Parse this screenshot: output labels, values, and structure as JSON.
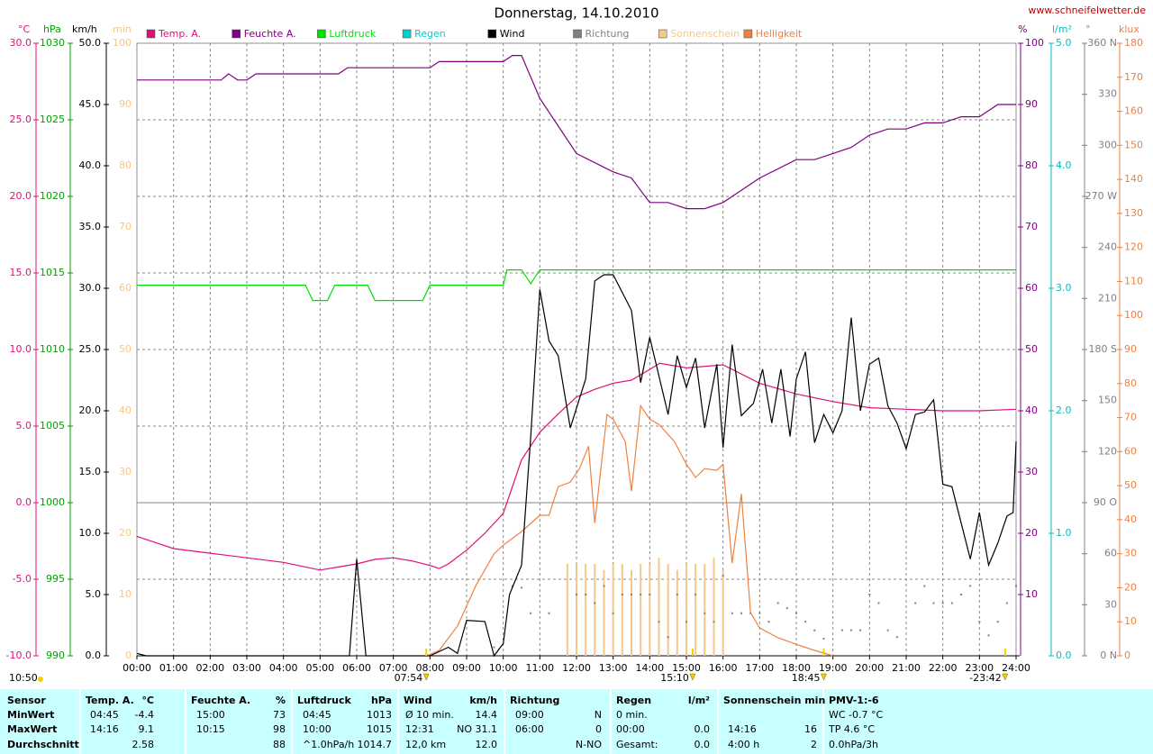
{
  "chart_data": {
    "type": "line",
    "title": "Donnerstag, 14.10.2010",
    "source": "www.schneifelwetter.de",
    "current_time": "10:50",
    "grid": true,
    "xlim": [
      0,
      24
    ],
    "xticks": [
      {
        "value": 0,
        "label": "00:00"
      },
      {
        "value": 1,
        "label": "01:00"
      },
      {
        "value": 2,
        "label": "02:00"
      },
      {
        "value": 3,
        "label": "03:00"
      },
      {
        "value": 4,
        "label": "04:00"
      },
      {
        "value": 5,
        "label": "05:00"
      },
      {
        "value": 6,
        "label": "06:00"
      },
      {
        "value": 7,
        "label": "07:00"
      },
      {
        "value": 8,
        "label": "08:00"
      },
      {
        "value": 9,
        "label": "09:00"
      },
      {
        "value": 10,
        "label": "10:00"
      },
      {
        "value": 11,
        "label": "11:00"
      },
      {
        "value": 12,
        "label": "12:00"
      },
      {
        "value": 13,
        "label": "13:00"
      },
      {
        "value": 14,
        "label": "14:00"
      },
      {
        "value": 15,
        "label": "15:00"
      },
      {
        "value": 16,
        "label": "16:00"
      },
      {
        "value": 17,
        "label": "17:00"
      },
      {
        "value": 18,
        "label": "18:00"
      },
      {
        "value": 19,
        "label": "19:00"
      },
      {
        "value": 20,
        "label": "20:00"
      },
      {
        "value": 21,
        "label": "21:00"
      },
      {
        "value": 22,
        "label": "22:00"
      },
      {
        "value": 23,
        "label": "23:00"
      },
      {
        "value": 24,
        "label": "24:00"
      }
    ],
    "axes": [
      {
        "unit": "°C",
        "color": "#e0107a",
        "lim": [
          -10,
          30
        ],
        "ticks": [
          {
            "value": -10,
            "label": "-10.0"
          },
          {
            "value": -5,
            "label": "-5.0"
          },
          {
            "value": 0,
            "label": "0.0"
          },
          {
            "value": 5,
            "label": "5.0"
          },
          {
            "value": 10,
            "label": "10.0"
          },
          {
            "value": 15,
            "label": "15.0"
          },
          {
            "value": 20,
            "label": "20.0"
          },
          {
            "value": 25,
            "label": "25.0"
          },
          {
            "value": 30,
            "label": "30.0"
          }
        ]
      },
      {
        "unit": "hPa",
        "color": "#00a000",
        "lim": [
          990,
          1030
        ],
        "ticks": [
          990,
          995,
          1000,
          1005,
          1010,
          1015,
          1020,
          1025,
          1030
        ]
      },
      {
        "unit": "km/h",
        "color": "#000000",
        "lim": [
          0,
          50
        ],
        "ticks": [
          {
            "value": 0,
            "label": "0.0"
          },
          {
            "value": 5,
            "label": "5.0"
          },
          {
            "value": 10,
            "label": "10.0"
          },
          {
            "value": 15,
            "label": "15.0"
          },
          {
            "value": 20,
            "label": "20.0"
          },
          {
            "value": 25,
            "label": "25.0"
          },
          {
            "value": 30,
            "label": "30.0"
          },
          {
            "value": 35,
            "label": "35.0"
          },
          {
            "value": 40,
            "label": "40.0"
          },
          {
            "value": 45,
            "label": "45.0"
          },
          {
            "value": 50,
            "label": "50.0"
          }
        ]
      },
      {
        "unit": "min",
        "color": "#f5c88a",
        "lim": [
          0,
          100
        ],
        "ticks": [
          0,
          10,
          20,
          30,
          40,
          50,
          60,
          70,
          80,
          90,
          100
        ]
      },
      {
        "unit": "%",
        "color": "#800080",
        "lim": [
          0,
          100
        ],
        "ticks": [
          10,
          20,
          30,
          40,
          50,
          60,
          70,
          80,
          90,
          100
        ]
      },
      {
        "unit": "l/m²",
        "color": "#00c0c0",
        "lim": [
          0,
          5
        ],
        "ticks": [
          {
            "value": 0,
            "label": "0.0"
          },
          {
            "value": 1,
            "label": "1.0"
          },
          {
            "value": 2,
            "label": "2.0"
          },
          {
            "value": 3,
            "label": "3.0"
          },
          {
            "value": 4,
            "label": "4.0"
          },
          {
            "value": 5,
            "label": "5.0"
          }
        ]
      },
      {
        "unit": "°",
        "color": "#808080",
        "lim": [
          0,
          360
        ],
        "ticks": [
          {
            "value": 0,
            "label": "0 N"
          },
          30,
          60,
          {
            "value": 90,
            "label": "90 O"
          },
          120,
          150,
          {
            "value": 180,
            "label": "180 S"
          },
          210,
          240,
          {
            "value": 270,
            "label": "270 W"
          },
          300,
          330,
          {
            "value": 360,
            "label": "360 N"
          }
        ]
      },
      {
        "unit": "klux",
        "color": "#f08040",
        "lim": [
          0,
          180
        ],
        "ticks": [
          0,
          10,
          20,
          30,
          40,
          50,
          60,
          70,
          80,
          90,
          100,
          110,
          120,
          130,
          140,
          150,
          160,
          170,
          180
        ]
      }
    ],
    "series": [
      {
        "name": "Temp. A.",
        "color": "#e0107a",
        "type": "line",
        "axis": 0,
        "x": [
          0,
          0.5,
          1,
          2,
          3,
          4,
          5,
          5.5,
          6,
          6.5,
          7,
          7.5,
          8,
          8.25,
          8.5,
          9,
          9.5,
          10,
          10.5,
          11,
          11.5,
          12,
          12.5,
          13,
          13.5,
          14,
          14.27,
          15,
          16,
          16.5,
          17,
          18,
          19,
          20,
          21,
          22,
          23,
          24
        ],
        "values": [
          -2.2,
          -2.6,
          -3.0,
          -3.3,
          -3.6,
          -3.9,
          -4.4,
          -4.2,
          -4.0,
          -3.7,
          -3.6,
          -3.8,
          -4.1,
          -4.3,
          -4.0,
          -3.1,
          -2.0,
          -0.7,
          2.8,
          4.6,
          5.8,
          6.9,
          7.4,
          7.8,
          8.0,
          8.7,
          9.1,
          8.8,
          9.0,
          8.4,
          7.8,
          7.1,
          6.6,
          6.2,
          6.1,
          6.0,
          6.0,
          6.1
        ]
      },
      {
        "name": "Feuchte A.",
        "color": "#800080",
        "type": "line",
        "axis": 4,
        "x": [
          0,
          2.3,
          2.5,
          2.75,
          3.0,
          3.25,
          5.5,
          5.75,
          8.0,
          8.25,
          10.0,
          10.25,
          10.5,
          11.0,
          12.0,
          13.0,
          13.5,
          14.0,
          14.5,
          15.0,
          15.5,
          16.0,
          16.5,
          17.0,
          18.0,
          18.5,
          19.0,
          19.5,
          20.0,
          20.5,
          21.0,
          21.5,
          22.0,
          22.5,
          23.0,
          23.5,
          24.0
        ],
        "values": [
          94,
          94,
          95,
          94,
          94,
          95,
          95,
          96,
          96,
          97,
          97,
          98,
          98,
          91,
          82,
          79,
          78,
          74,
          74,
          73,
          73,
          74,
          76,
          78,
          81,
          81,
          82,
          83,
          85,
          86,
          86,
          87,
          87,
          88,
          88,
          90,
          90
        ]
      },
      {
        "name": "Luftdruck",
        "color": "#00e000",
        "type": "line",
        "axis": 1,
        "x": [
          0,
          4.6,
          4.8,
          5.2,
          5.4,
          6.3,
          6.5,
          7.8,
          8.0,
          10.0,
          10.1,
          10.5,
          10.75,
          11.0,
          24.0
        ],
        "values": [
          1014.2,
          1014.2,
          1013.2,
          1013.2,
          1014.2,
          1014.2,
          1013.2,
          1013.2,
          1014.2,
          1014.2,
          1015.2,
          1015.2,
          1014.3,
          1015.2,
          1015.2
        ]
      },
      {
        "name": "Regen",
        "color": "#00d0d0",
        "type": "line",
        "axis": 5,
        "x": [],
        "values": []
      },
      {
        "name": "Wind",
        "color": "#000000",
        "type": "line",
        "axis": 2,
        "x": [
          0,
          0.25,
          5.8,
          6.0,
          6.25,
          8.0,
          8.5,
          8.75,
          9.0,
          9.5,
          9.75,
          10.0,
          10.17,
          10.5,
          10.75,
          11.0,
          11.25,
          11.5,
          11.83,
          12.25,
          12.5,
          12.75,
          13.0,
          13.5,
          13.75,
          14.0,
          14.5,
          14.75,
          15.0,
          15.25,
          15.5,
          15.83,
          16.0,
          16.25,
          16.5,
          16.83,
          17.08,
          17.33,
          17.58,
          17.83,
          18.0,
          18.25,
          18.5,
          18.75,
          19.0,
          19.25,
          19.5,
          19.75,
          20.0,
          20.25,
          20.5,
          20.75,
          21.0,
          21.25,
          21.5,
          21.75,
          22.0,
          22.25,
          22.75,
          23.0,
          23.25,
          23.5,
          23.75,
          23.92,
          24.0
        ],
        "values": [
          0.2,
          0,
          0,
          7.9,
          0,
          0,
          0.7,
          0.2,
          2.9,
          2.8,
          0,
          1.0,
          5.0,
          7.4,
          17.9,
          29.9,
          25.7,
          24.5,
          18.6,
          22.6,
          30.6,
          31.1,
          31.1,
          28.2,
          22.3,
          26.0,
          19.7,
          24.5,
          21.9,
          24.3,
          18.6,
          23.8,
          17.0,
          25.4,
          19.6,
          20.6,
          23.4,
          19.0,
          23.4,
          17.9,
          22.6,
          24.8,
          17.4,
          19.7,
          18.2,
          20.0,
          27.6,
          20.0,
          23.8,
          24.3,
          20.4,
          19.0,
          16.9,
          19.7,
          19.9,
          20.9,
          14.0,
          13.8,
          7.9,
          11.7,
          7.4,
          9.2,
          11.4,
          11.7,
          17.5
        ]
      },
      {
        "name": "Richtung",
        "color": "#808080",
        "type": "scatter",
        "axis": 6,
        "x": [
          9.75,
          10.25,
          10.5,
          10.75,
          11.25,
          12.0,
          12.25,
          12.5,
          12.75,
          13.0,
          13.25,
          13.5,
          13.75,
          14.0,
          14.25,
          14.5,
          14.75,
          15.0,
          15.25,
          15.5,
          15.75,
          16.0,
          16.25,
          16.5,
          16.75,
          17.0,
          17.25,
          17.5,
          17.75,
          18.0,
          18.25,
          18.5,
          18.75,
          19.25,
          19.5,
          19.75,
          20.0,
          20.25,
          20.5,
          20.75,
          21.25,
          21.5,
          21.75,
          22.0,
          22.25,
          22.5,
          22.75,
          23.0,
          23.25,
          23.5,
          23.75,
          24.0
        ],
        "values": [
          5,
          41,
          40,
          25,
          25,
          36,
          36,
          31,
          41,
          25,
          36,
          36,
          36,
          36,
          20,
          11,
          36,
          20,
          36,
          25,
          20,
          47,
          25,
          25,
          25,
          25,
          20,
          31,
          28,
          25,
          20,
          15,
          10,
          15,
          15,
          15,
          36,
          31,
          15,
          11,
          31,
          41,
          31,
          31,
          31,
          36,
          41,
          20,
          12,
          20,
          31,
          41
        ]
      },
      {
        "name": "Sonnenschein",
        "color": "#f5c88a",
        "type": "bar",
        "axis": 3,
        "x": [
          11.75,
          12.0,
          12.25,
          12.5,
          12.75,
          13.0,
          13.25,
          13.5,
          13.75,
          14.0,
          14.25,
          14.5,
          14.75,
          15.0,
          15.25,
          15.5,
          15.75,
          16.0
        ],
        "values": [
          15,
          15,
          15,
          15,
          14,
          15,
          15,
          14,
          15,
          15,
          16,
          15,
          14,
          15,
          15,
          15,
          16,
          14
        ]
      },
      {
        "name": "Helligkeit",
        "color": "#f08040",
        "type": "line",
        "axis": 7,
        "x": [
          7.9,
          8.25,
          8.75,
          9.25,
          9.75,
          10.0,
          10.5,
          11.0,
          11.25,
          11.5,
          11.83,
          12.08,
          12.33,
          12.5,
          12.83,
          13.0,
          13.33,
          13.5,
          13.75,
          14.0,
          14.25,
          14.67,
          15.0,
          15.25,
          15.5,
          15.83,
          16.0,
          16.25,
          16.5,
          16.75,
          17.0,
          17.5,
          18.0,
          18.5,
          19.0
        ],
        "values": [
          0,
          1.6,
          8.7,
          20.6,
          30,
          32.5,
          36.5,
          41.3,
          41.3,
          49.7,
          51,
          55,
          61.6,
          39,
          70.9,
          69.5,
          63,
          48.4,
          73.5,
          69.5,
          68,
          63,
          56.3,
          52.4,
          55,
          54.5,
          56.3,
          27.2,
          47.6,
          12.7,
          8.2,
          5.3,
          3.4,
          1.6,
          0
        ]
      }
    ],
    "annotations": [
      {
        "text": "07:54",
        "x": 7.9
      },
      {
        "text": "15:10",
        "x": 15.17
      },
      {
        "text": "18:45",
        "x": 18.75
      },
      {
        "text": "-23:42",
        "x": 23.7
      }
    ]
  },
  "table": {
    "header": "Sensor",
    "row_labels": [
      "MinWert",
      "MaxWert",
      "Durchschnitt"
    ],
    "columns": [
      {
        "title": "Temp. A.",
        "unit": "°C",
        "rows": [
          {
            "left": "04:45",
            "right": "-4.4"
          },
          {
            "left": "14:16",
            "right": "9.1"
          },
          {
            "right": "2.58"
          }
        ]
      },
      {
        "title": "Feuchte A.",
        "unit": "%",
        "rows": [
          {
            "left": "15:00",
            "right": "73"
          },
          {
            "left": "10:15",
            "right": "98"
          },
          {
            "right": "88"
          }
        ]
      },
      {
        "title": "Luftdruck",
        "unit": "hPa",
        "rows": [
          {
            "left": "04:45",
            "right": "1013"
          },
          {
            "left": "10:00",
            "right": "1015"
          },
          {
            "left": "^1.0hPa/h",
            "right": "1014.7"
          }
        ]
      },
      {
        "title": "Wind",
        "unit": "km/h",
        "rows": [
          {
            "left": "Ø 10 min.",
            "right": "14.4"
          },
          {
            "left": "12:31",
            "right": "NO 31.1"
          },
          {
            "left": "12,0 km",
            "right": "12.0"
          }
        ]
      },
      {
        "title": "Richtung",
        "rows": [
          {
            "left": "09:00",
            "right": "N"
          },
          {
            "left": "06:00",
            "right": "0"
          },
          {
            "right": "N-NO"
          }
        ]
      },
      {
        "title": "Regen",
        "unit": "l/m²",
        "rows": [
          {
            "left": "0 min."
          },
          {
            "left": "00:00",
            "right": "0.0"
          },
          {
            "left": "Gesamt:",
            "right": "0.0"
          }
        ]
      },
      {
        "title": "Sonnenschein min",
        "rows": [
          {},
          {
            "left": "14:16",
            "right": "16"
          },
          {
            "left": "4:00 h",
            "right": "2"
          }
        ]
      },
      {
        "title": "PMV-1:-6",
        "rows": [
          {
            "left": "WC -0.7 °C"
          },
          {
            "left": "TP 4.6 °C"
          },
          {
            "left": "0.0hPa/3h"
          }
        ]
      }
    ]
  }
}
